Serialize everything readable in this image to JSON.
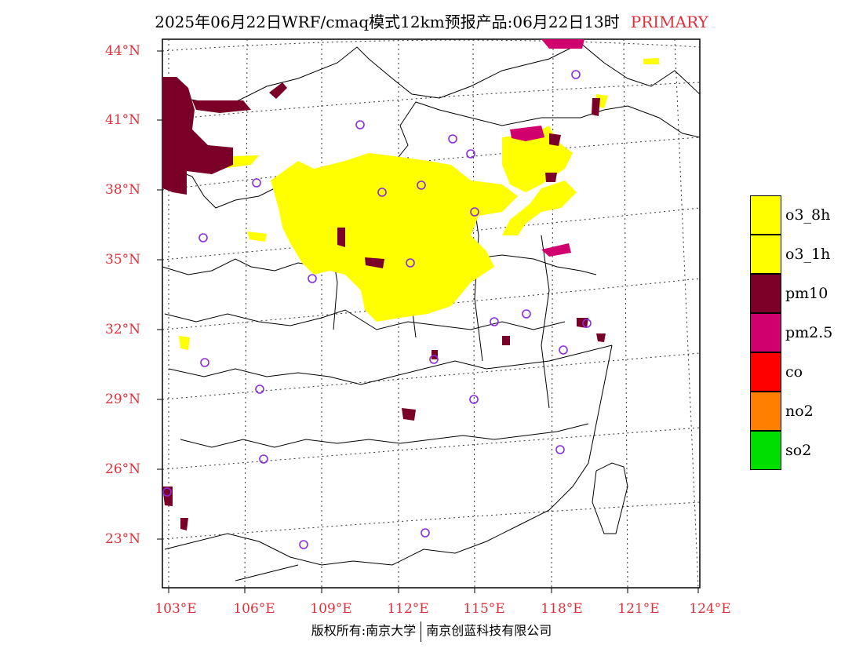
{
  "header": {
    "title": "2025年06月22日WRF/cmaq模式12km预报产品:06月22日13时",
    "primary": "PRIMARY"
  },
  "axes": {
    "lat_labels": [
      "44°N",
      "41°N",
      "38°N",
      "35°N",
      "32°N",
      "29°N",
      "26°N",
      "23°N"
    ],
    "lon_labels": [
      "103°E",
      "106°E",
      "109°E",
      "112°E",
      "115°E",
      "118°E",
      "121°E",
      "124°E"
    ]
  },
  "legend": {
    "items": [
      {
        "label": "o3_8h",
        "color": "#ffff00"
      },
      {
        "label": "o3_1h",
        "color": "#ffff00"
      },
      {
        "label": "pm10",
        "color": "#7a0028"
      },
      {
        "label": "pm2.5",
        "color": "#d0006e"
      },
      {
        "label": "co",
        "color": "#ff0000"
      },
      {
        "label": "no2",
        "color": "#ff7f00"
      },
      {
        "label": "so2",
        "color": "#00dd00"
      }
    ]
  },
  "colors": {
    "o3": "#ffff00",
    "pm10": "#7a0028",
    "pm25": "#d0006e",
    "station_marker": "#8a2be2",
    "label_red": "#e0303a"
  },
  "footer": {
    "left": "版权所有:南京大学",
    "right": "南京创蓝科技有限公司"
  }
}
